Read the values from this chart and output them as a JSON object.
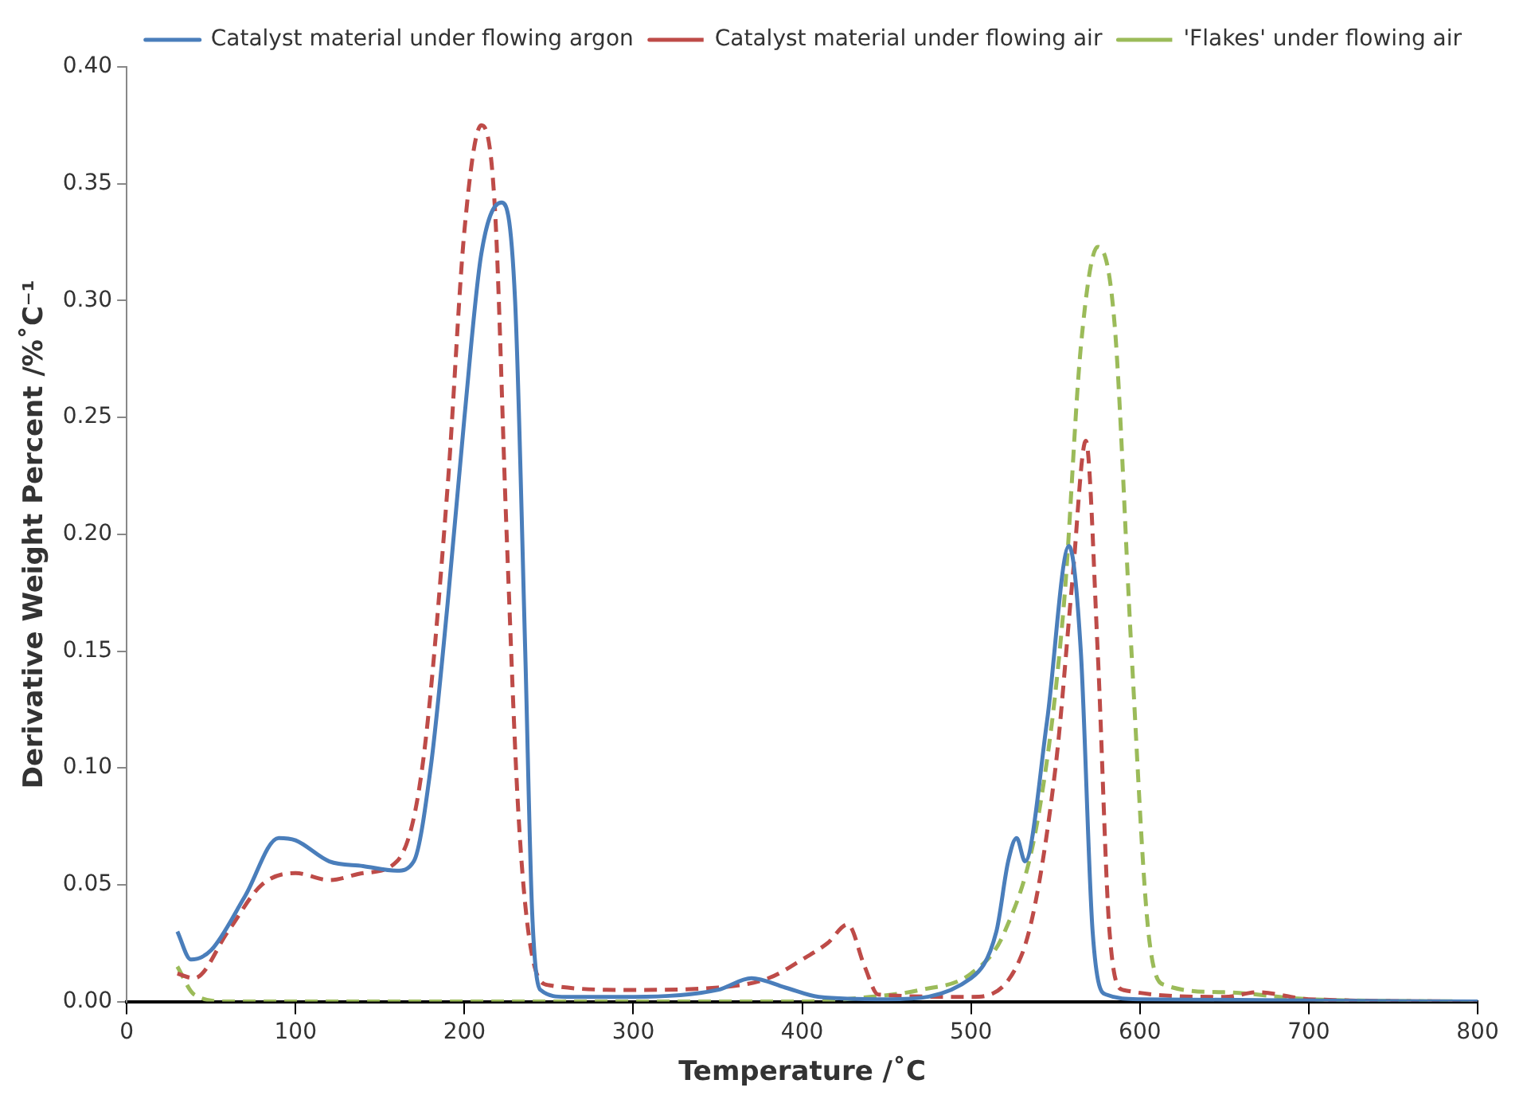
{
  "chart_data": {
    "type": "line",
    "xlabel": "Temperature /˚C",
    "ylabel": "Derivative Weight Percent /%˚C⁻¹",
    "xlim": [
      0,
      800
    ],
    "xticks": [
      0,
      100,
      200,
      300,
      400,
      500,
      600,
      700,
      800
    ],
    "ylim": [
      0,
      0.4
    ],
    "yticks": [
      {
        "value": 0,
        "label": "0.00"
      },
      {
        "value": 0.05,
        "label": "0.05"
      },
      {
        "value": 0.1,
        "label": "0.10"
      },
      {
        "value": 0.15,
        "label": "0.15"
      },
      {
        "value": 0.2,
        "label": "0.20"
      },
      {
        "value": 0.25,
        "label": "0.25"
      },
      {
        "value": 0.3,
        "label": "0.30"
      },
      {
        "value": 0.35,
        "label": "0.35"
      },
      {
        "value": 0.4,
        "label": "0.40"
      }
    ],
    "grid": false,
    "legend": "top right",
    "marker": "none",
    "series": [
      {
        "name": "Catalyst material under flowing argon",
        "color": "#4a7ebb",
        "line_style": "solid",
        "x": [
          30,
          38,
          50,
          70,
          90,
          100,
          120,
          140,
          160,
          170,
          180,
          190,
          200,
          210,
          222,
          230,
          236,
          240,
          245,
          260,
          300,
          350,
          370,
          390,
          410,
          450,
          500,
          515,
          522,
          527,
          532,
          545,
          558,
          565,
          572,
          580,
          600,
          800
        ],
        "values": [
          0.03,
          0.018,
          0.022,
          0.045,
          0.07,
          0.069,
          0.06,
          0.058,
          0.056,
          0.06,
          0.1,
          0.17,
          0.25,
          0.32,
          0.342,
          0.3,
          0.15,
          0.04,
          0.005,
          0.002,
          0.002,
          0.005,
          0.01,
          0.006,
          0.002,
          0.001,
          0.01,
          0.03,
          0.06,
          0.07,
          0.06,
          0.12,
          0.195,
          0.15,
          0.03,
          0.003,
          0.001,
          0
        ]
      },
      {
        "name": "Catalyst material under flowing air",
        "color": "#be4b48",
        "line_style": "dashed",
        "x": [
          30,
          40,
          60,
          80,
          100,
          120,
          140,
          160,
          175,
          190,
          200,
          210,
          218,
          225,
          232,
          240,
          250,
          300,
          350,
          380,
          400,
          415,
          427,
          437,
          445,
          500,
          530,
          550,
          560,
          568,
          575,
          582,
          590,
          650,
          670,
          700,
          800
        ],
        "values": [
          0.012,
          0.01,
          0.03,
          0.05,
          0.055,
          0.052,
          0.055,
          0.06,
          0.1,
          0.22,
          0.33,
          0.375,
          0.34,
          0.2,
          0.08,
          0.02,
          0.007,
          0.005,
          0.006,
          0.01,
          0.018,
          0.025,
          0.033,
          0.015,
          0.003,
          0.002,
          0.02,
          0.1,
          0.18,
          0.24,
          0.15,
          0.03,
          0.005,
          0.002,
          0.004,
          0.001,
          0
        ]
      },
      {
        "name": "'Flakes' under flowing air",
        "color": "#9bbb59",
        "line_style": "dashed",
        "x": [
          30,
          40,
          60,
          200,
          400,
          440,
          470,
          500,
          520,
          540,
          555,
          565,
          575,
          585,
          595,
          605,
          615,
          650,
          700,
          800
        ],
        "values": [
          0.015,
          0.003,
          0,
          0,
          0,
          0.002,
          0.005,
          0.012,
          0.03,
          0.08,
          0.17,
          0.28,
          0.323,
          0.29,
          0.15,
          0.03,
          0.007,
          0.004,
          0.001,
          0
        ]
      }
    ]
  }
}
